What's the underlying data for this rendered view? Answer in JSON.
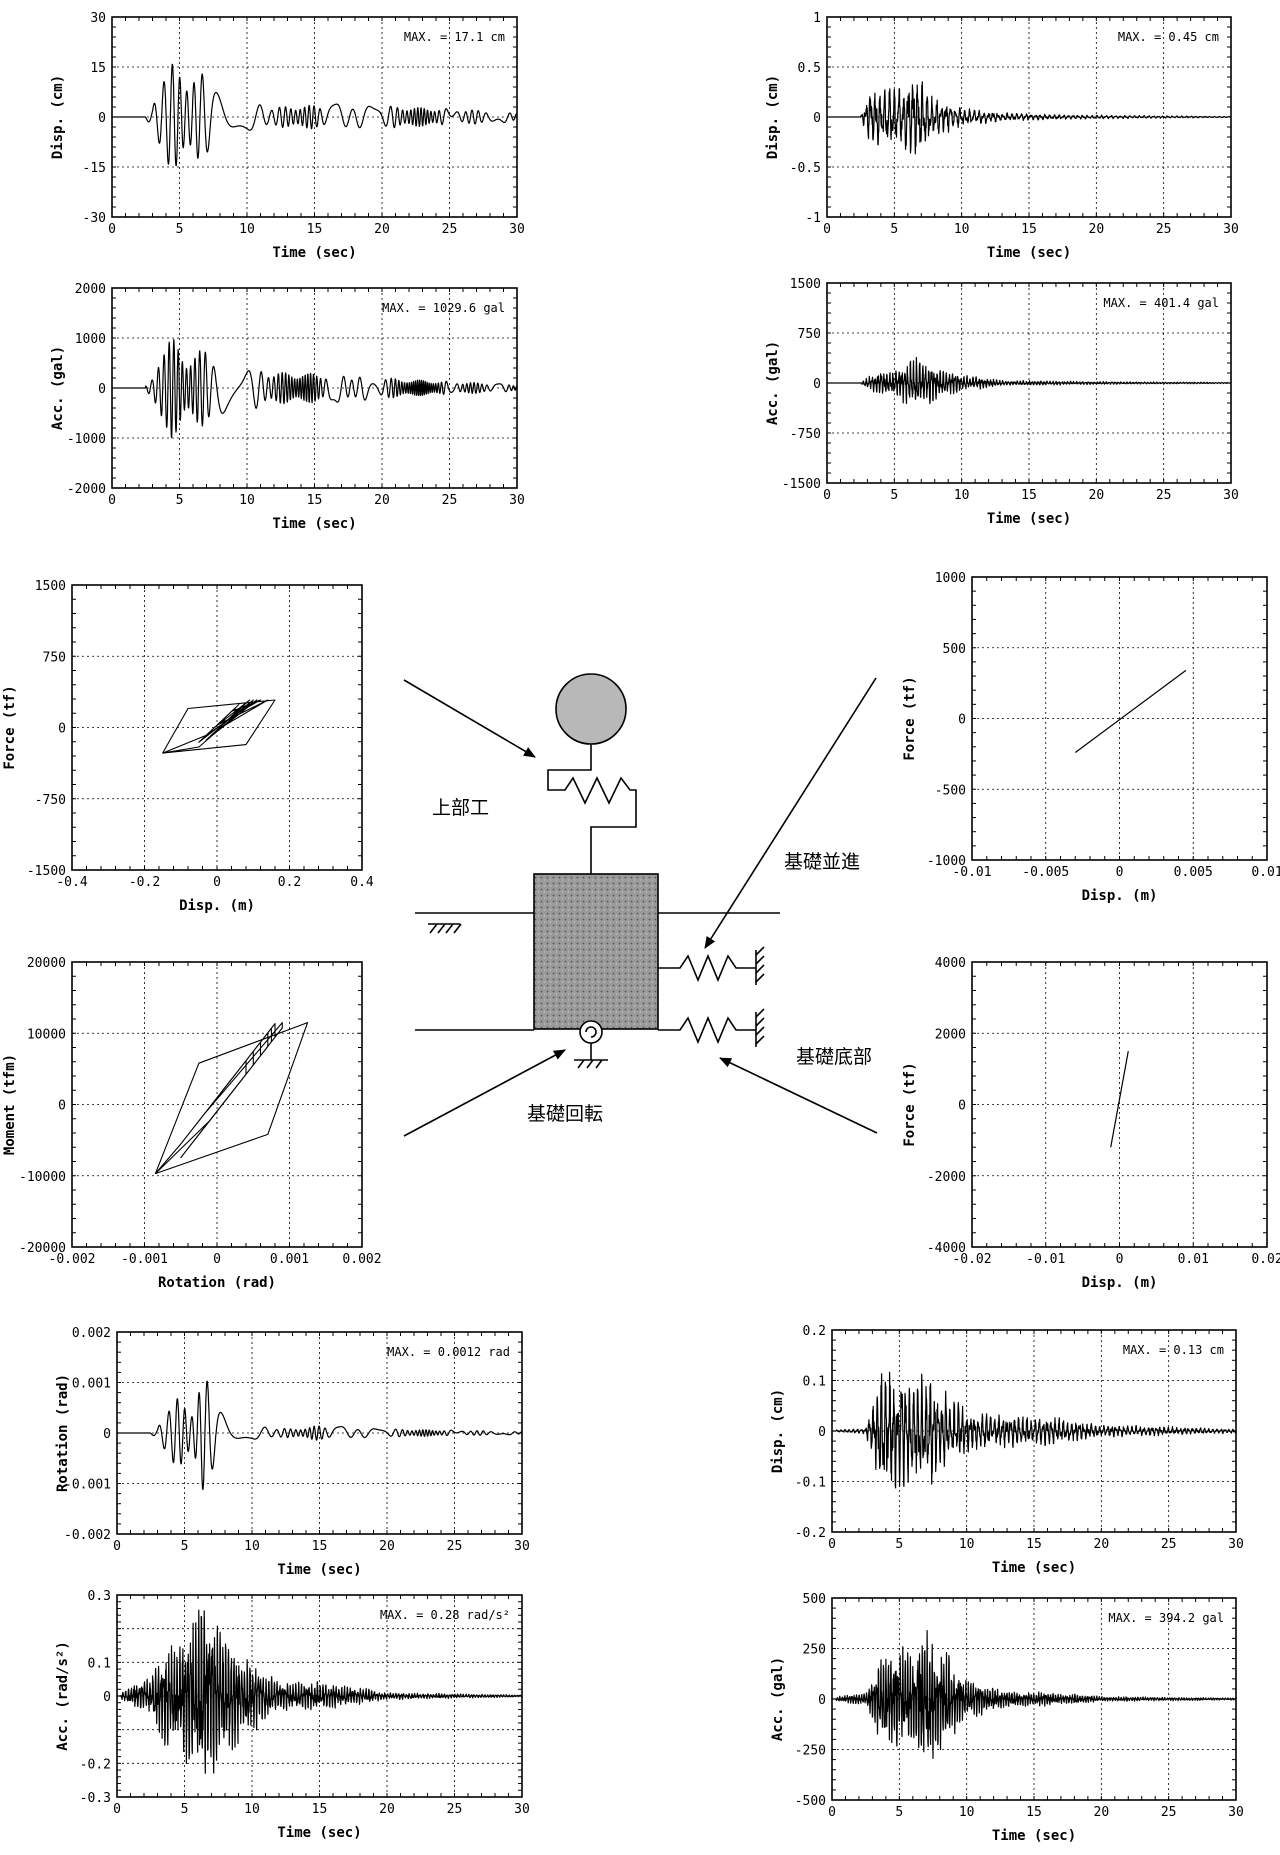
{
  "diagram": {
    "labels": {
      "superstructure": "上部工",
      "foundation_translation": "基礎並進",
      "foundation_bottom": "基礎底部",
      "foundation_rotation": "基礎回転"
    }
  },
  "chart_data": [
    {
      "id": "c_ld",
      "type": "line",
      "xlabel": "Time (sec)",
      "ylabel": "Disp. (cm)",
      "xlim": [
        0,
        30
      ],
      "ylim": [
        -30,
        30
      ],
      "xticks": [
        0,
        5,
        10,
        15,
        20,
        25,
        30
      ],
      "yticks": [
        -30,
        -15,
        0,
        15,
        30
      ],
      "ytick_labels": [
        "-30",
        "-15",
        "0",
        "15",
        "30"
      ],
      "annotation": "MAX. = 17.1 cm",
      "grid": true,
      "max": 17.1,
      "signal": {
        "kind": "sine",
        "start": 2.5,
        "end": 30,
        "period": 0.85,
        "envelope": [
          [
            2.5,
            0.5
          ],
          [
            3,
            3
          ],
          [
            3.6,
            15
          ],
          [
            4.3,
            16.5
          ],
          [
            5.5,
            13
          ],
          [
            7,
            13
          ],
          [
            8.5,
            11
          ],
          [
            10,
            5
          ],
          [
            12,
            3
          ],
          [
            17,
            4
          ],
          [
            30,
            1.5
          ]
        ]
      }
    },
    {
      "id": "c_la",
      "type": "line",
      "xlabel": "Time (sec)",
      "ylabel": "Acc. (gal)",
      "xlim": [
        0,
        30
      ],
      "ylim": [
        -2000,
        2000
      ],
      "xticks": [
        0,
        5,
        10,
        15,
        20,
        25,
        30
      ],
      "yticks": [
        -2000,
        -1000,
        0,
        1000,
        2000
      ],
      "ytick_labels": [
        "-2000",
        "-1000",
        "0",
        "1000",
        "2000"
      ],
      "annotation": "MAX. = 1029.6 gal",
      "grid": true,
      "max": 1029.6,
      "signal": {
        "kind": "sine",
        "start": 2.5,
        "end": 30,
        "period": 0.5,
        "envelope": [
          [
            2.5,
            50
          ],
          [
            3,
            200
          ],
          [
            3.7,
            950
          ],
          [
            4.4,
            1030
          ],
          [
            5.5,
            650
          ],
          [
            7,
            800
          ],
          [
            8.5,
            550
          ],
          [
            10,
            450
          ],
          [
            12,
            320
          ],
          [
            17,
            280
          ],
          [
            22,
            170
          ],
          [
            30,
            70
          ]
        ]
      }
    },
    {
      "id": "c_rd",
      "type": "line",
      "xlabel": "Time (sec)",
      "ylabel": "Disp. (cm)",
      "xlim": [
        0,
        30
      ],
      "ylim": [
        -1,
        1
      ],
      "xticks": [
        0,
        5,
        10,
        15,
        20,
        25,
        30
      ],
      "yticks": [
        -1,
        -0.5,
        0,
        0.5,
        1
      ],
      "ytick_labels": [
        "-1",
        "-0.5",
        "0",
        "0.5",
        "1"
      ],
      "annotation": "MAX. = 0.45 cm",
      "grid": true,
      "max": 0.45,
      "signal": {
        "kind": "noise",
        "start": 2.5,
        "end": 30,
        "period": 0.35,
        "envelope": [
          [
            2.5,
            0.01
          ],
          [
            3.3,
            0.3
          ],
          [
            4.2,
            0.3
          ],
          [
            5.5,
            0.3
          ],
          [
            6.6,
            0.45
          ],
          [
            8,
            0.2
          ],
          [
            10,
            0.09
          ],
          [
            13,
            0.04
          ],
          [
            18,
            0.02
          ],
          [
            30,
            0.005
          ]
        ]
      }
    },
    {
      "id": "c_ra",
      "type": "line",
      "xlabel": "Time (sec)",
      "ylabel": "Acc. (gal)",
      "xlim": [
        0,
        30
      ],
      "ylim": [
        -1500,
        1500
      ],
      "xticks": [
        0,
        5,
        10,
        15,
        20,
        25,
        30
      ],
      "yticks": [
        -1500,
        -750,
        0,
        750,
        1500
      ],
      "ytick_labels": [
        "-1500",
        "-750",
        "0",
        "750",
        "1500"
      ],
      "annotation": "MAX. = 401.4 gal",
      "grid": true,
      "max": 401.4,
      "signal": {
        "kind": "noise",
        "start": 2.5,
        "end": 30,
        "period": 0.22,
        "envelope": [
          [
            2.5,
            20
          ],
          [
            4,
            200
          ],
          [
            5,
            180
          ],
          [
            6.6,
            400
          ],
          [
            8,
            240
          ],
          [
            10,
            120
          ],
          [
            13,
            40
          ],
          [
            20,
            20
          ],
          [
            30,
            8
          ]
        ]
      }
    },
    {
      "id": "c_fd",
      "type": "hysteresis",
      "xlabel": "Disp. (m)",
      "ylabel": "Force (tf)",
      "xlim": [
        -0.4,
        0.4
      ],
      "ylim": [
        -1500,
        1500
      ],
      "xticks": [
        -0.4,
        -0.2,
        0,
        0.2,
        0.4
      ],
      "xtick_labels": [
        "-0.4",
        "-0.2",
        "0",
        "0.2",
        "0.4"
      ],
      "yticks": [
        -1500,
        -750,
        0,
        750,
        1500
      ],
      "ytick_labels": [
        "-1500",
        "-750",
        "0",
        "750",
        "1500"
      ],
      "grid": true,
      "loop": {
        "corners": [
          [
            -0.15,
            -270
          ],
          [
            -0.08,
            200
          ],
          [
            0.16,
            290
          ],
          [
            0.08,
            -180
          ]
        ],
        "inner": [
          [
            -0.03,
            0.11
          ],
          [
            -0.01,
            0.09
          ],
          [
            0.0,
            0.14
          ],
          [
            0.02,
            0.05
          ],
          [
            0.04,
            0.12
          ],
          [
            0.06,
            0.02
          ],
          [
            -0.05,
            0.1
          ]
        ],
        "k": 3600
      }
    },
    {
      "id": "c_fr",
      "type": "hysteresis",
      "xlabel": "Rotation (rad)",
      "ylabel": "Moment (tfm)",
      "xlim": [
        -0.002,
        0.002
      ],
      "ylim": [
        -20000,
        20000
      ],
      "xticks": [
        -0.002,
        -0.001,
        0,
        0.001,
        0.002
      ],
      "xtick_labels": [
        "-0.002",
        "-0.001",
        "0",
        "0.001",
        "0.002"
      ],
      "yticks": [
        -20000,
        -10000,
        0,
        10000,
        20000
      ],
      "ytick_labels": [
        "-20000",
        "-10000",
        "0",
        "10000",
        "20000"
      ],
      "grid": true,
      "loop": {
        "corners": [
          [
            -0.00085,
            -9700
          ],
          [
            -0.00025,
            5800
          ],
          [
            0.00125,
            11500
          ],
          [
            0.0007,
            -4200
          ]
        ],
        "inner": [
          [
            -0.0005,
            0.0005
          ],
          [
            -0.0003,
            0.0007
          ],
          [
            -0.0002,
            0.0009
          ],
          [
            0.0,
            0.0006
          ],
          [
            -0.0004,
            0.0008
          ],
          [
            0.0001,
            0.0004
          ],
          [
            -0.0001,
            0.00075
          ]
        ],
        "k": 13000000
      }
    },
    {
      "id": "c_ft",
      "type": "line",
      "xlabel": "Disp. (m)",
      "ylabel": "Force (tf)",
      "xlim": [
        -0.01,
        0.01
      ],
      "ylim": [
        -1000,
        1000
      ],
      "xticks": [
        -0.01,
        -0.005,
        0,
        0.005,
        0.01
      ],
      "xtick_labels": [
        "-0.01",
        "-0.005",
        "0",
        "0.005",
        "0.01"
      ],
      "yticks": [
        -1000,
        -500,
        0,
        500,
        1000
      ],
      "ytick_labels": [
        "-1000",
        "-500",
        "0",
        "500",
        "1000"
      ],
      "grid": true,
      "points": [
        [
          -0.003,
          -240
        ],
        [
          0.0045,
          340
        ]
      ]
    },
    {
      "id": "c_fb",
      "type": "line",
      "xlabel": "Disp. (m)",
      "ylabel": "Force (tf)",
      "xlim": [
        -0.02,
        0.02
      ],
      "ylim": [
        -4000,
        4000
      ],
      "xticks": [
        -0.02,
        -0.01,
        0,
        0.01,
        0.02
      ],
      "xtick_labels": [
        "-0.02",
        "-0.01",
        "0",
        "0.01",
        "0.02"
      ],
      "yticks": [
        -4000,
        -2000,
        0,
        2000,
        4000
      ],
      "ytick_labels": [
        "-4000",
        "-2000",
        "0",
        "2000",
        "4000"
      ],
      "grid": true,
      "points": [
        [
          -0.0012,
          -1200
        ],
        [
          0.0012,
          1500
        ]
      ]
    },
    {
      "id": "c_lr",
      "type": "line",
      "xlabel": "Time (sec)",
      "ylabel": "Rotation (rad)",
      "xlim": [
        0,
        30
      ],
      "ylim": [
        -0.002,
        0.002
      ],
      "xticks": [
        0,
        5,
        10,
        15,
        20,
        25,
        30
      ],
      "yticks": [
        -0.002,
        -0.001,
        0,
        0.001,
        0.002
      ],
      "ytick_labels": [
        "-0.002",
        "-0.001",
        "0",
        "0.001",
        "0.002"
      ],
      "annotation": "MAX. = 0.0012 rad",
      "grid": true,
      "max": 0.0012,
      "signal": {
        "kind": "sine",
        "start": 2.5,
        "end": 30,
        "period": 0.85,
        "envelope": [
          [
            2.5,
            2e-05
          ],
          [
            3,
            0.0001
          ],
          [
            3.6,
            0.0006
          ],
          [
            4.4,
            0.0007
          ],
          [
            5.5,
            0.0005
          ],
          [
            6.3,
            0.0012
          ],
          [
            7,
            0.0009
          ],
          [
            8.5,
            0.0004
          ],
          [
            10,
            0.00015
          ],
          [
            13,
            8e-05
          ],
          [
            15,
            0.00015
          ],
          [
            20,
            8e-05
          ],
          [
            30,
            3e-05
          ]
        ]
      }
    },
    {
      "id": "c_laa",
      "type": "line",
      "xlabel": "Time (sec)",
      "ylabel": "Acc. (rad/s²)",
      "xlim": [
        0,
        30
      ],
      "ylim": [
        -0.3,
        0.3
      ],
      "xticks": [
        0,
        5,
        10,
        15,
        20,
        25,
        30
      ],
      "yticks": [
        -0.3,
        -0.2,
        -0.1,
        0,
        0.1,
        0.2,
        0.3
      ],
      "ytick_labels": [
        "-0.3",
        "-0.2",
        "",
        "0",
        "0.1",
        "",
        "0.3"
      ],
      "annotation": "MAX. = 0.28 rad/s²",
      "grid": true,
      "max": 0.28,
      "signal": {
        "kind": "noise",
        "start": 0.3,
        "end": 30,
        "period": 0.2,
        "envelope": [
          [
            0.3,
            0.01
          ],
          [
            1,
            0.03
          ],
          [
            2.5,
            0.06
          ],
          [
            3.5,
            0.15
          ],
          [
            4.5,
            0.15
          ],
          [
            6.5,
            0.28
          ],
          [
            8,
            0.18
          ],
          [
            10,
            0.1
          ],
          [
            12,
            0.04
          ],
          [
            15,
            0.04
          ],
          [
            18,
            0.025
          ],
          [
            20,
            0.01
          ],
          [
            30,
            0.003
          ]
        ]
      }
    },
    {
      "id": "c_rd2",
      "type": "line",
      "xlabel": "Time (sec)",
      "ylabel": "Disp. (cm)",
      "xlim": [
        0,
        30
      ],
      "ylim": [
        -0.2,
        0.2
      ],
      "xticks": [
        0,
        5,
        10,
        15,
        20,
        25,
        30
      ],
      "yticks": [
        -0.2,
        -0.1,
        0,
        0.1,
        0.2
      ],
      "ytick_labels": [
        "-0.2",
        "-0.1",
        "0",
        "0.1",
        "0.2"
      ],
      "annotation": "MAX. = 0.13 cm",
      "grid": true,
      "max": 0.13,
      "signal": {
        "kind": "noise",
        "start": 0.3,
        "end": 30,
        "period": 0.3,
        "envelope": [
          [
            0.3,
            0.002
          ],
          [
            2.5,
            0.005
          ],
          [
            3.5,
            0.1
          ],
          [
            4.5,
            0.13
          ],
          [
            6,
            0.1
          ],
          [
            6.8,
            0.12
          ],
          [
            8,
            0.09
          ],
          [
            10,
            0.04
          ],
          [
            13,
            0.03
          ],
          [
            17,
            0.025
          ],
          [
            20,
            0.012
          ],
          [
            30,
            0.004
          ]
        ]
      }
    },
    {
      "id": "c_ra2",
      "type": "line",
      "xlabel": "Time (sec)",
      "ylabel": "Acc. (gal)",
      "xlim": [
        0,
        30
      ],
      "ylim": [
        -500,
        500
      ],
      "xticks": [
        0,
        5,
        10,
        15,
        20,
        25,
        30
      ],
      "yticks": [
        -500,
        -250,
        0,
        250,
        500
      ],
      "ytick_labels": [
        "-500",
        "-250",
        "0",
        "250",
        "500"
      ],
      "annotation": "MAX. = 394.2 gal",
      "grid": true,
      "max": 394.2,
      "signal": {
        "kind": "noise",
        "start": 0.3,
        "end": 30,
        "period": 0.18,
        "envelope": [
          [
            0.3,
            10
          ],
          [
            2.5,
            30
          ],
          [
            3.5,
            200
          ],
          [
            4.5,
            260
          ],
          [
            6,
            220
          ],
          [
            6.7,
            394
          ],
          [
            8,
            250
          ],
          [
            10,
            100
          ],
          [
            13,
            40
          ],
          [
            17,
            30
          ],
          [
            20,
            12
          ],
          [
            30,
            5
          ]
        ]
      }
    }
  ]
}
